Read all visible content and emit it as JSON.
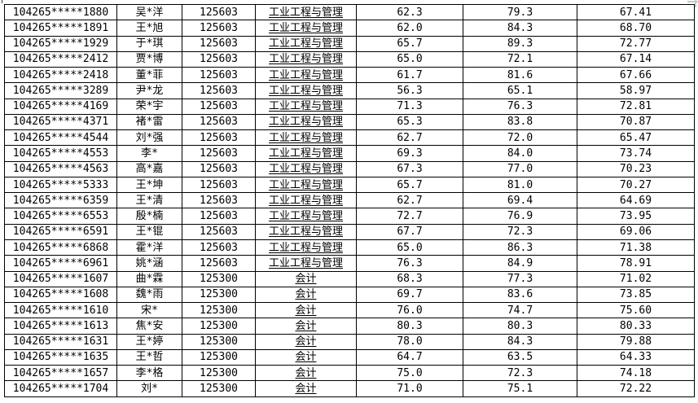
{
  "table": {
    "program_codes": {
      "industrial_engineering": "125603",
      "accounting": "125300"
    },
    "program_labels": {
      "industrial_engineering": "工业工程与管理",
      "accounting": "会计"
    },
    "rows": [
      [
        "104265*****1880",
        "吴*洋",
        "125603",
        "工业工程与管理",
        "62.3",
        "79.3",
        "67.41"
      ],
      [
        "104265*****1891",
        "王*旭",
        "125603",
        "工业工程与管理",
        "62.0",
        "84.3",
        "68.70"
      ],
      [
        "104265*****1929",
        "于*琪",
        "125603",
        "工业工程与管理",
        "65.7",
        "89.3",
        "72.77"
      ],
      [
        "104265*****2412",
        "贾*博",
        "125603",
        "工业工程与管理",
        "65.0",
        "72.1",
        "67.14"
      ],
      [
        "104265*****2418",
        "董*菲",
        "125603",
        "工业工程与管理",
        "61.7",
        "81.6",
        "67.66"
      ],
      [
        "104265*****3289",
        "尹*龙",
        "125603",
        "工业工程与管理",
        "56.3",
        "65.1",
        "58.97"
      ],
      [
        "104265*****4169",
        "荣*宇",
        "125603",
        "工业工程与管理",
        "71.3",
        "76.3",
        "72.81"
      ],
      [
        "104265*****4371",
        "褚*雷",
        "125603",
        "工业工程与管理",
        "65.3",
        "83.8",
        "70.87"
      ],
      [
        "104265*****4544",
        "刘*强",
        "125603",
        "工业工程与管理",
        "62.7",
        "72.0",
        "65.47"
      ],
      [
        "104265*****4553",
        "李*",
        "125603",
        "工业工程与管理",
        "69.3",
        "84.0",
        "73.74"
      ],
      [
        "104265*****4563",
        "高*嘉",
        "125603",
        "工业工程与管理",
        "67.3",
        "77.0",
        "70.23"
      ],
      [
        "104265*****5333",
        "王*坤",
        "125603",
        "工业工程与管理",
        "65.7",
        "81.0",
        "70.27"
      ],
      [
        "104265*****6359",
        "王*清",
        "125603",
        "工业工程与管理",
        "62.7",
        "69.4",
        "64.69"
      ],
      [
        "104265*****6553",
        "殷*楠",
        "125603",
        "工业工程与管理",
        "72.7",
        "76.9",
        "73.95"
      ],
      [
        "104265*****6591",
        "王*锟",
        "125603",
        "工业工程与管理",
        "67.7",
        "72.3",
        "69.06"
      ],
      [
        "104265*****6868",
        "霍*洋",
        "125603",
        "工业工程与管理",
        "65.0",
        "86.3",
        "71.38"
      ],
      [
        "104265*****6961",
        "姚*涵",
        "125603",
        "工业工程与管理",
        "76.3",
        "84.9",
        "78.91"
      ],
      [
        "104265*****1607",
        "曲*霖",
        "125300",
        "会计",
        "68.3",
        "77.3",
        "71.02"
      ],
      [
        "104265*****1608",
        "魏*雨",
        "125300",
        "会计",
        "69.7",
        "83.6",
        "73.85"
      ],
      [
        "104265*****1610",
        "宋*",
        "125300",
        "会计",
        "76.0",
        "74.7",
        "75.60"
      ],
      [
        "104265*****1613",
        "焦*安",
        "125300",
        "会计",
        "80.3",
        "80.3",
        "80.33"
      ],
      [
        "104265*****1631",
        "王*婷",
        "125300",
        "会计",
        "78.0",
        "84.3",
        "79.88"
      ],
      [
        "104265*****1635",
        "王*哲",
        "125300",
        "会计",
        "64.7",
        "63.5",
        "64.33"
      ],
      [
        "104265*****1657",
        "李*格",
        "125300",
        "会计",
        "75.0",
        "72.3",
        "74.18"
      ],
      [
        "104265*****1704",
        "刘*",
        "125300",
        "会计",
        "71.0",
        "75.1",
        "72.22"
      ]
    ],
    "colors": {
      "border": "#000000",
      "text": "#000000",
      "background": "#ffffff",
      "crop_artifact_gray": "#c9c9c9"
    }
  }
}
